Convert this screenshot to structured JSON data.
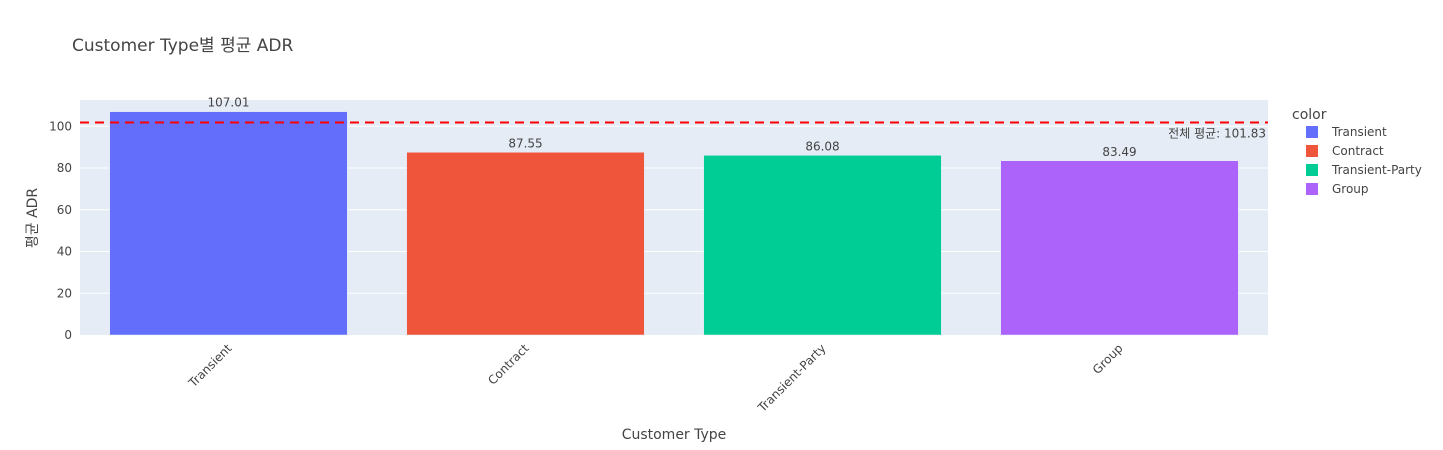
{
  "chart_data": {
    "type": "bar",
    "title": "Customer Type별 평균 ADR",
    "xlabel": "Customer Type",
    "ylabel": "평균 ADR",
    "categories": [
      "Transient",
      "Contract",
      "Transient-Party",
      "Group"
    ],
    "values": [
      107.01,
      87.55,
      86.08,
      83.49
    ],
    "value_labels": [
      "107.01",
      "87.55",
      "86.08",
      "83.49"
    ],
    "colors": [
      "#636efa",
      "#ef553b",
      "#00cc96",
      "#ab63fa"
    ],
    "ylim": [
      0,
      112.6
    ],
    "yticks": [
      0,
      20,
      40,
      60,
      80,
      100
    ],
    "ytick_labels": [
      "0",
      "20",
      "40",
      "60",
      "80",
      "100"
    ],
    "grid": true,
    "reference_line": {
      "value": 101.83,
      "label": "전체 평균: 101.83",
      "color": "#ff0000",
      "style": "dashed"
    },
    "legend": {
      "title": "color",
      "placement": "right",
      "items": [
        "Transient",
        "Contract",
        "Transient-Party",
        "Group"
      ]
    }
  }
}
